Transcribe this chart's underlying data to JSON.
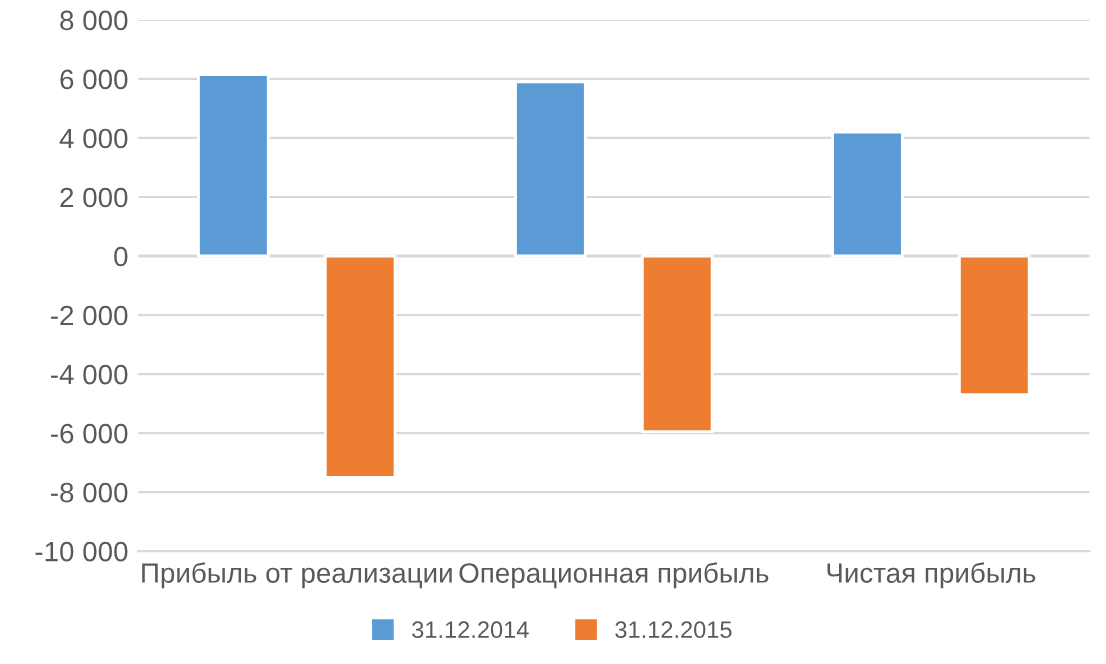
{
  "chart_data": {
    "type": "bar",
    "categories": [
      "Прибыль от реализации",
      "Операционная прибыль",
      "Чистая прибыль"
    ],
    "series": [
      {
        "name": "31.12.2014",
        "color": "#5b9bd5",
        "values": [
          6150,
          5900,
          4200
        ]
      },
      {
        "name": "31.12.2015",
        "color": "#ed7d31",
        "values": [
          -7500,
          -5950,
          -4700
        ]
      }
    ],
    "ylim": [
      -10000,
      8000
    ],
    "yticks": [
      {
        "value": -10000,
        "label": "-10 000"
      },
      {
        "value": -8000,
        "label": "-8 000"
      },
      {
        "value": -6000,
        "label": "-6 000"
      },
      {
        "value": -4000,
        "label": "-4 000"
      },
      {
        "value": -2000,
        "label": "-2 000"
      },
      0,
      {
        "value": 2000,
        "label": "2 000"
      },
      {
        "value": 4000,
        "label": "4 000"
      },
      {
        "value": 6000,
        "label": "6 000"
      },
      {
        "value": 8000,
        "label": "8 000"
      }
    ],
    "grid": "y",
    "legend": "bottom"
  }
}
